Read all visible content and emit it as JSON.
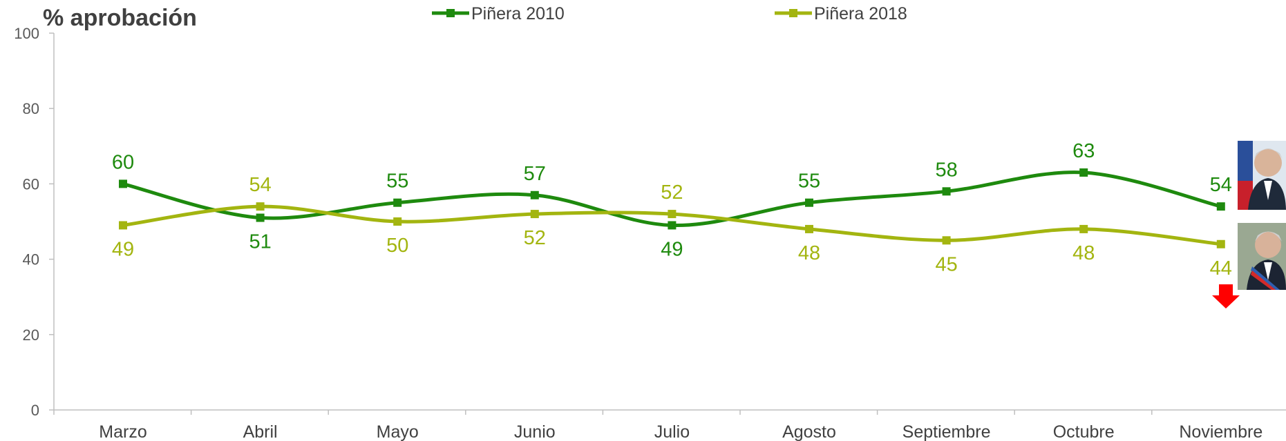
{
  "chart_data": {
    "type": "line",
    "title": "% aprobación",
    "categories": [
      "Marzo",
      "Abril",
      "Mayo",
      "Junio",
      "Julio",
      "Agosto",
      "Septiembre",
      "Octubre",
      "Noviembre"
    ],
    "ylim": [
      0,
      100
    ],
    "yticks": [
      0,
      20,
      40,
      60,
      80,
      100
    ],
    "grid": false,
    "legend_position": "top",
    "series": [
      {
        "name": "Piñera 2010",
        "color": "#1e8a0e",
        "values": [
          60,
          51,
          55,
          57,
          49,
          55,
          58,
          63,
          54
        ]
      },
      {
        "name": "Piñera 2018",
        "color": "#a3b510",
        "values": [
          49,
          54,
          50,
          52,
          52,
          48,
          45,
          48,
          44
        ]
      }
    ]
  },
  "icons": [
    "portrait-2010-icon",
    "portrait-2018-icon",
    "down-arrow-icon"
  ],
  "colors": {
    "axis": "#bfbfbf",
    "arrow": "#ff0000"
  }
}
